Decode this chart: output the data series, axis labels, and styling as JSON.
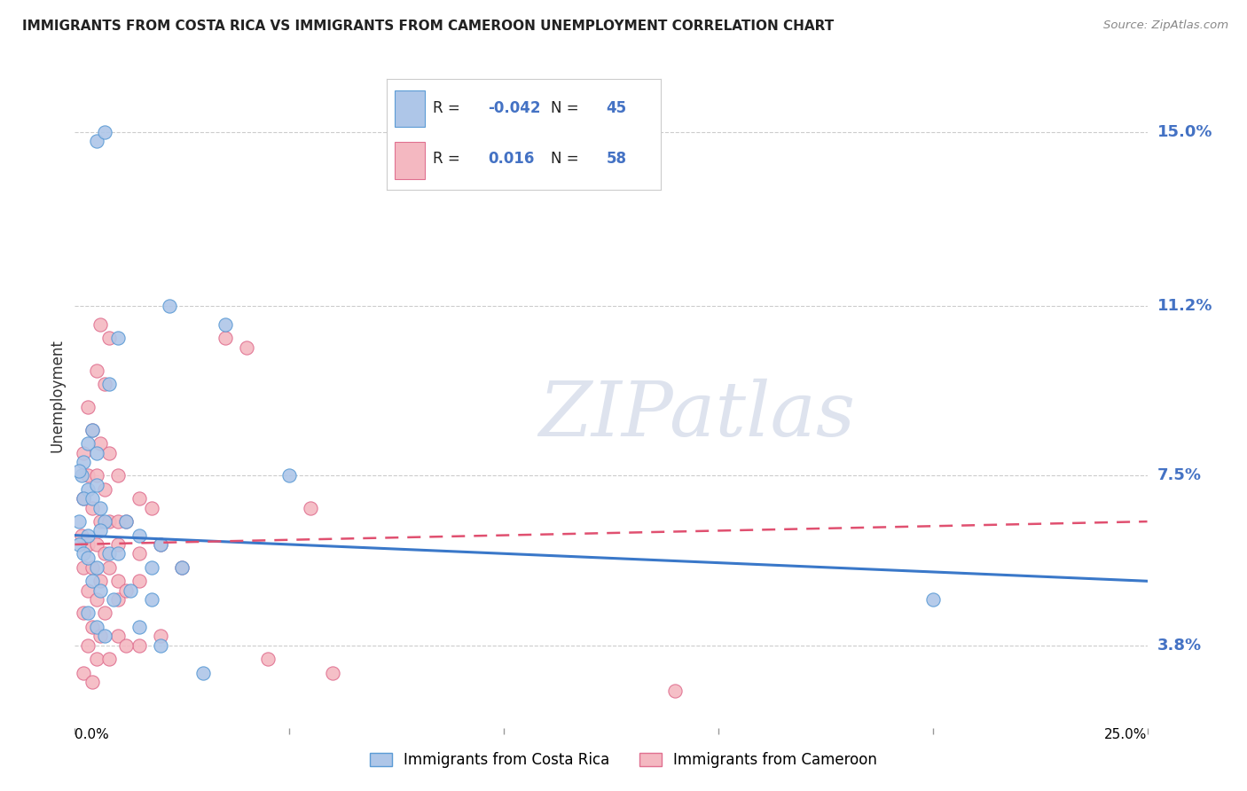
{
  "title": "IMMIGRANTS FROM COSTA RICA VS IMMIGRANTS FROM CAMEROON UNEMPLOYMENT CORRELATION CHART",
  "source": "Source: ZipAtlas.com",
  "ylabel": "Unemployment",
  "yticks": [
    3.8,
    7.5,
    11.2,
    15.0
  ],
  "ytick_labels": [
    "3.8%",
    "7.5%",
    "11.2%",
    "15.0%"
  ],
  "xlim": [
    0.0,
    25.0
  ],
  "ylim": [
    2.0,
    16.5
  ],
  "legend_blue_R": "-0.042",
  "legend_blue_N": "45",
  "legend_pink_R": "0.016",
  "legend_pink_N": "58",
  "blue_color": "#aec6e8",
  "blue_edge_color": "#5b9bd5",
  "pink_color": "#f4b8c1",
  "pink_edge_color": "#e07090",
  "trendline_blue_color": "#3a78c9",
  "trendline_pink_color": "#e05070",
  "watermark": "ZIPatlas",
  "blue_label": "Immigrants from Costa Rica",
  "pink_label": "Immigrants from Cameroon",
  "blue_scatter": [
    [
      0.5,
      14.8
    ],
    [
      0.7,
      15.0
    ],
    [
      2.2,
      11.2
    ],
    [
      1.0,
      10.5
    ],
    [
      3.5,
      10.8
    ],
    [
      0.8,
      9.5
    ],
    [
      0.3,
      8.2
    ],
    [
      0.5,
      8.0
    ],
    [
      0.4,
      8.5
    ],
    [
      0.2,
      7.8
    ],
    [
      0.15,
      7.5
    ],
    [
      0.1,
      7.6
    ],
    [
      0.3,
      7.2
    ],
    [
      0.2,
      7.0
    ],
    [
      0.4,
      7.0
    ],
    [
      0.5,
      7.3
    ],
    [
      0.6,
      6.8
    ],
    [
      0.7,
      6.5
    ],
    [
      0.1,
      6.5
    ],
    [
      0.3,
      6.2
    ],
    [
      0.6,
      6.3
    ],
    [
      1.2,
      6.5
    ],
    [
      1.5,
      6.2
    ],
    [
      2.0,
      6.0
    ],
    [
      0.1,
      6.0
    ],
    [
      0.2,
      5.8
    ],
    [
      0.3,
      5.7
    ],
    [
      0.5,
      5.5
    ],
    [
      0.8,
      5.8
    ],
    [
      1.0,
      5.8
    ],
    [
      1.8,
      5.5
    ],
    [
      2.5,
      5.5
    ],
    [
      0.4,
      5.2
    ],
    [
      0.6,
      5.0
    ],
    [
      0.9,
      4.8
    ],
    [
      1.3,
      5.0
    ],
    [
      1.8,
      4.8
    ],
    [
      0.3,
      4.5
    ],
    [
      0.5,
      4.2
    ],
    [
      0.7,
      4.0
    ],
    [
      1.5,
      4.2
    ],
    [
      2.0,
      3.8
    ],
    [
      5.0,
      7.5
    ],
    [
      20.0,
      4.8
    ],
    [
      3.0,
      3.2
    ]
  ],
  "pink_scatter": [
    [
      0.6,
      10.8
    ],
    [
      0.8,
      10.5
    ],
    [
      3.5,
      10.5
    ],
    [
      4.0,
      10.3
    ],
    [
      0.5,
      9.8
    ],
    [
      0.7,
      9.5
    ],
    [
      0.3,
      9.0
    ],
    [
      0.4,
      8.5
    ],
    [
      0.6,
      8.2
    ],
    [
      0.8,
      8.0
    ],
    [
      0.2,
      8.0
    ],
    [
      0.3,
      7.5
    ],
    [
      0.5,
      7.5
    ],
    [
      0.7,
      7.2
    ],
    [
      1.0,
      7.5
    ],
    [
      1.5,
      7.0
    ],
    [
      0.2,
      7.0
    ],
    [
      0.4,
      6.8
    ],
    [
      0.6,
      6.5
    ],
    [
      0.8,
      6.5
    ],
    [
      1.0,
      6.5
    ],
    [
      1.2,
      6.5
    ],
    [
      1.8,
      6.8
    ],
    [
      5.5,
      6.8
    ],
    [
      0.15,
      6.2
    ],
    [
      0.3,
      6.0
    ],
    [
      0.5,
      6.0
    ],
    [
      0.7,
      5.8
    ],
    [
      1.0,
      6.0
    ],
    [
      1.5,
      5.8
    ],
    [
      2.0,
      6.0
    ],
    [
      0.2,
      5.5
    ],
    [
      0.4,
      5.5
    ],
    [
      0.6,
      5.2
    ],
    [
      0.8,
      5.5
    ],
    [
      1.0,
      5.2
    ],
    [
      0.3,
      5.0
    ],
    [
      0.5,
      4.8
    ],
    [
      0.7,
      4.5
    ],
    [
      1.0,
      4.8
    ],
    [
      1.2,
      5.0
    ],
    [
      1.5,
      5.2
    ],
    [
      2.5,
      5.5
    ],
    [
      0.2,
      4.5
    ],
    [
      0.4,
      4.2
    ],
    [
      0.6,
      4.0
    ],
    [
      1.0,
      4.0
    ],
    [
      1.5,
      3.8
    ],
    [
      2.0,
      4.0
    ],
    [
      0.3,
      3.8
    ],
    [
      0.5,
      3.5
    ],
    [
      0.8,
      3.5
    ],
    [
      1.2,
      3.8
    ],
    [
      4.5,
      3.5
    ],
    [
      6.0,
      3.2
    ],
    [
      0.2,
      3.2
    ],
    [
      0.4,
      3.0
    ],
    [
      14.0,
      2.8
    ]
  ],
  "blue_trend": [
    6.2,
    5.2
  ],
  "pink_trend": [
    6.0,
    6.5
  ],
  "xtick_positions": [
    0.0,
    5.0,
    10.0,
    15.0,
    20.0,
    25.0
  ]
}
